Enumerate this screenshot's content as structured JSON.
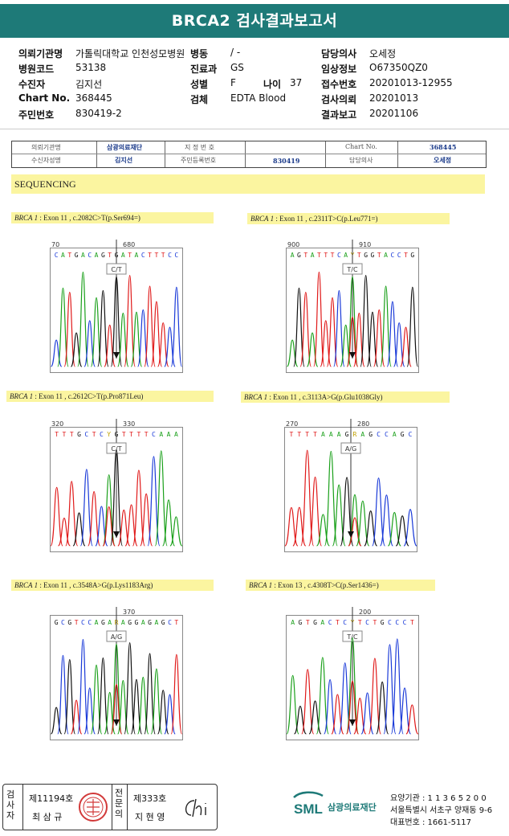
{
  "title": "BRCA2 검사결과보고서",
  "info": {
    "req_org_label": "의뢰기관명",
    "req_org_value": "가톨릭대학교 인천성모병원",
    "ward_label": "병동",
    "ward_value": "/ -",
    "doctor_label": "담당의사",
    "doctor_value": "오세정",
    "hosp_code_label": "병원코드",
    "hosp_code_value": "53138",
    "dept_label": "진료과",
    "dept_value": "GS",
    "clinical_label": "임상정보",
    "clinical_value": "O67350QZ0",
    "patient_label": "수진자",
    "patient_value": "김지선",
    "sex_label": "성별",
    "sex_value": "F",
    "age_label": "나이",
    "age_value": "37",
    "receipt_label": "접수번호",
    "receipt_value": "20201013-12955",
    "chart_label": "Chart No.",
    "chart_value": "368445",
    "specimen_label": "검체",
    "specimen_value": "EDTA Blood",
    "request_date_label": "검사의뢰",
    "request_date_value": "20201013",
    "rrn_label": "주민번호",
    "rrn_value": "830419-2",
    "report_label": "결과보고",
    "report_value": "20201106"
  },
  "scan_table": {
    "org_label": "의뢰기관명",
    "org_value": "삼광의료재단",
    "patient_label": "수신자성명",
    "patient_value": "김지선",
    "designation_label": "지 정 번 호",
    "designation_value": "",
    "rrn_label": "주민등록번호",
    "rrn_value": "830419",
    "chart_label": "Chart No.",
    "chart_value": "368445",
    "doctor_label": "담당의사",
    "doctor_value": "오세정"
  },
  "sequencing_label": "SEQUENCING",
  "panels": [
    {
      "gene": "BRCA 1",
      "desc": " : Exon 11 , c.2082C>T(p.Ser694=)",
      "seq": "CATGACAGTGATACTTTCC",
      "pos_a": "70",
      "pos_b": "680",
      "call": "C/T"
    },
    {
      "gene": "BRCA 1",
      "desc": " : Exon 11 , c.2311T>C(p.Leu771=)",
      "seq": "AGTATTTCAYTGGTACCTG",
      "pos_a": "900",
      "pos_b": "910",
      "call": "T/C"
    },
    {
      "gene": "BRCA 1",
      "desc": " : Exon 11 , c.2612C>T(p.Pro871Leu)",
      "seq": "TTTGCTCYGTTTTCAAA",
      "pos_a": "320",
      "pos_b": "330",
      "call": "C/T"
    },
    {
      "gene": "BRCA 1",
      "desc": " : Exon 11 , c.3113A>G(p.Glu1038Gly)",
      "seq": "TTTTAAAGRAGCCAGC",
      "pos_a": "270",
      "pos_b": "280",
      "call": "A/G"
    },
    {
      "gene": "BRCA 1",
      "desc": " : Exon 11 , c.3548A>G(p.Lys1183Arg)",
      "seq": "GCGTCCAGARAGGAGAGCT",
      "pos_a": "",
      "pos_b": "370",
      "call": "A/G"
    },
    {
      "gene": "BRCA 1",
      "desc": " : Exon 13 , c.4308T>C(p.Ser1436=)",
      "seq": "AGTGACTCYTCTGCCCT",
      "pos_a": "",
      "pos_b": "200",
      "call": "T/C"
    }
  ],
  "footer": {
    "exam_label": "검사자",
    "exam_no": "제11194호",
    "exam_name": "최 삼 규",
    "spec_label": "전문의",
    "spec_no": "제333호",
    "spec_name": "지 현 영",
    "signature": "Chi",
    "logo": "SML",
    "org": "삼광의료재단",
    "care_code": "요양기관 : 1 1 3 6 5 2 0 0",
    "address": "서울특별시 서초구 양재동 9-6",
    "phone": "대표번호 : 1661-5117"
  }
}
